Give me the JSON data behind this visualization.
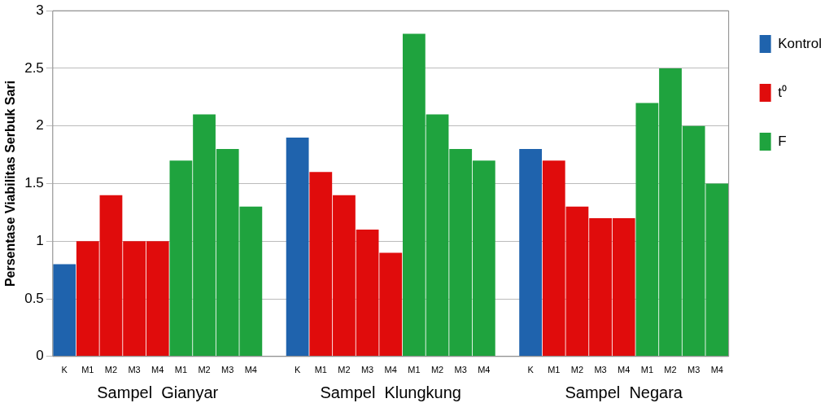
{
  "chart_data": {
    "type": "bar",
    "ylabel": "Persentase Viabilitas Serbuk Sari",
    "categories": [
      "K",
      "M1",
      "M2",
      "M3",
      "M4",
      "M1",
      "M2",
      "M3",
      "M4",
      null,
      "K",
      "M1",
      "M2",
      "M3",
      "M4",
      "M1",
      "M2",
      "M3",
      "M4",
      null,
      "K",
      "M1",
      "M2",
      "M3",
      "M4",
      "M1",
      "M2",
      "M3",
      "M4"
    ],
    "series": [
      {
        "name": "Kontrol",
        "color": "#1f63ad",
        "values": [
          0.8,
          null,
          null,
          null,
          null,
          null,
          null,
          null,
          null,
          null,
          1.9,
          null,
          null,
          null,
          null,
          null,
          null,
          null,
          null,
          null,
          1.8,
          null,
          null,
          null,
          null,
          null,
          null,
          null,
          null
        ]
      },
      {
        "name": "t⁰",
        "color": "#e00c0c",
        "values": [
          null,
          1.0,
          1.4,
          1.0,
          1.0,
          null,
          null,
          null,
          null,
          null,
          null,
          1.6,
          1.4,
          1.1,
          0.9,
          null,
          null,
          null,
          null,
          null,
          null,
          1.7,
          1.3,
          1.2,
          1.2,
          null,
          null,
          null,
          null
        ]
      },
      {
        "name": "F",
        "color": "#1fa33e",
        "values": [
          null,
          null,
          null,
          null,
          null,
          1.7,
          2.1,
          1.8,
          1.3,
          null,
          null,
          null,
          null,
          null,
          null,
          2.8,
          2.1,
          1.8,
          1.7,
          null,
          null,
          null,
          null,
          null,
          null,
          2.2,
          2.5,
          2.0,
          1.5
        ]
      }
    ],
    "annotations": [
      "Sampel  Gianyar",
      "Sampel  Klungkung",
      "Sampel  Negara"
    ],
    "ylim": [
      0,
      3
    ],
    "yticks": [
      0,
      0.5,
      1,
      1.5,
      2,
      2.5,
      3
    ],
    "grid": "y",
    "legend": "right"
  }
}
